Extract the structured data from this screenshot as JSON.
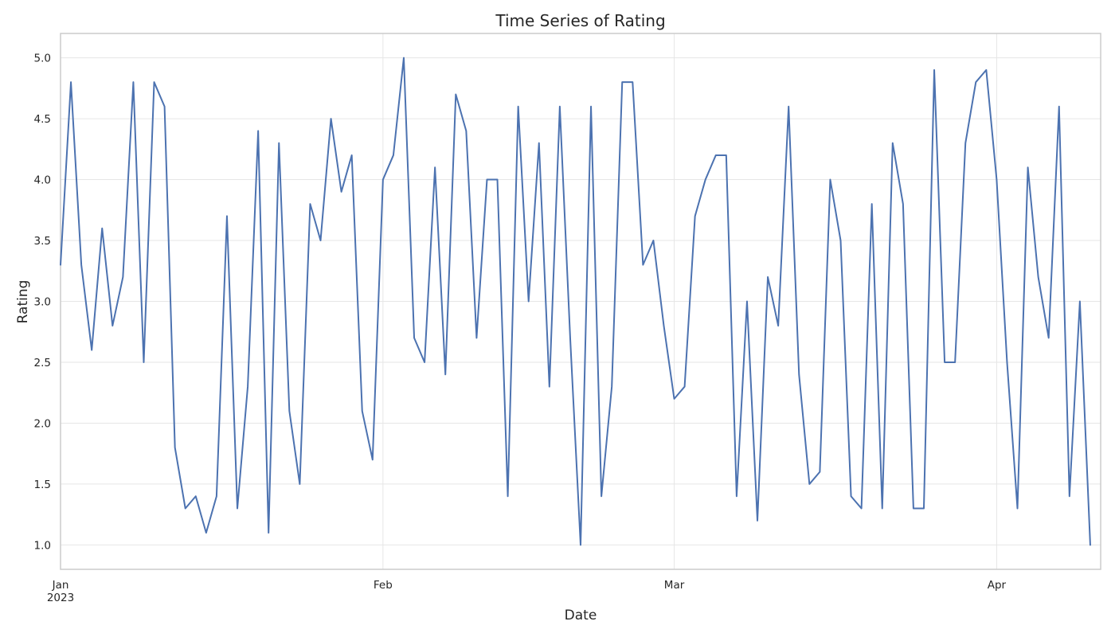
{
  "chart_data": {
    "type": "line",
    "title": "Time Series of Rating",
    "xlabel": "Date",
    "ylabel": "Rating",
    "x_start": "2023-01-01",
    "x_end": "2023-04-10",
    "xlim": [
      "2023-01-01",
      "2023-04-11"
    ],
    "ylim": [
      0.8,
      5.2
    ],
    "y_ticks": [
      1.0,
      1.5,
      2.0,
      2.5,
      3.0,
      3.5,
      4.0,
      4.5,
      5.0
    ],
    "x_ticks": [
      {
        "date": "2023-01-01",
        "label": "Jan",
        "sublabel": "2023"
      },
      {
        "date": "2023-02-01",
        "label": "Feb",
        "sublabel": ""
      },
      {
        "date": "2023-03-01",
        "label": "Mar",
        "sublabel": ""
      },
      {
        "date": "2023-04-01",
        "label": "Apr",
        "sublabel": ""
      }
    ],
    "grid": true,
    "series_color": "#4c72b0",
    "series": [
      {
        "values": [
          3.3,
          4.8,
          3.3,
          2.6,
          3.6,
          2.8,
          3.2,
          4.8,
          2.5,
          4.8,
          4.6,
          1.8,
          1.3,
          1.4,
          1.1,
          1.4,
          3.7,
          1.3,
          2.3,
          4.4,
          1.1,
          4.3,
          2.1,
          1.5,
          3.8,
          3.5,
          4.5,
          3.9,
          4.2,
          2.1,
          1.7,
          4.0,
          4.2,
          5.0,
          2.7,
          2.5,
          4.1,
          2.4,
          4.7,
          4.4,
          2.7,
          4.0,
          4.0,
          1.4,
          4.6,
          3.0,
          4.3,
          2.3,
          4.6,
          2.7,
          1.0,
          4.6,
          1.4,
          2.3,
          4.8,
          4.8,
          3.3,
          3.5,
          2.8,
          2.2,
          2.3,
          3.7,
          4.0,
          4.2,
          4.2,
          1.4,
          3.0,
          1.2,
          3.2,
          2.8,
          4.6,
          2.4,
          1.5,
          1.6,
          4.0,
          3.5,
          1.4,
          1.3,
          3.8,
          1.3,
          4.3,
          3.8,
          1.3,
          1.3,
          4.9,
          2.5,
          2.5,
          4.3,
          4.8,
          4.9,
          4.0,
          2.5,
          1.3,
          4.1,
          3.2,
          2.7,
          4.6,
          1.4,
          3.0,
          1.0
        ]
      }
    ]
  }
}
